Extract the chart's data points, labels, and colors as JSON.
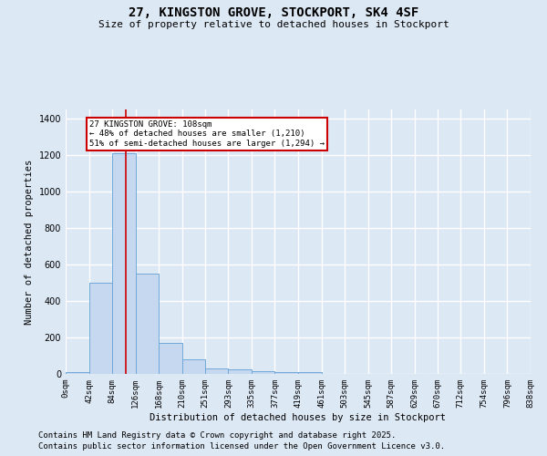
{
  "title1": "27, KINGSTON GROVE, STOCKPORT, SK4 4SF",
  "title2": "Size of property relative to detached houses in Stockport",
  "xlabel": "Distribution of detached houses by size in Stockport",
  "ylabel": "Number of detached properties",
  "bin_edges": [
    0,
    42,
    84,
    126,
    168,
    210,
    251,
    293,
    335,
    377,
    419,
    461,
    503,
    545,
    587,
    629,
    670,
    712,
    754,
    796,
    838
  ],
  "bar_heights": [
    10,
    500,
    1210,
    550,
    170,
    80,
    30,
    25,
    15,
    10,
    10,
    0,
    0,
    0,
    0,
    0,
    0,
    0,
    0,
    0
  ],
  "bar_color": "#c5d8f0",
  "bar_edge_color": "#6fa8d8",
  "background_color": "#dde8f5",
  "grid_color": "#ffffff",
  "property_size": 108,
  "red_line_color": "#cc0000",
  "annotation_text": "27 KINGSTON GROVE: 108sqm\n← 48% of detached houses are smaller (1,210)\n51% of semi-detached houses are larger (1,294) →",
  "annotation_box_color": "#ffffff",
  "annotation_edge_color": "#cc0000",
  "ylim": [
    0,
    1450
  ],
  "yticks": [
    0,
    200,
    400,
    600,
    800,
    1000,
    1200,
    1400
  ],
  "footnote1": "Contains HM Land Registry data © Crown copyright and database right 2025.",
  "footnote2": "Contains public sector information licensed under the Open Government Licence v3.0.",
  "tick_labels": [
    "0sqm",
    "42sqm",
    "84sqm",
    "126sqm",
    "168sqm",
    "210sqm",
    "251sqm",
    "293sqm",
    "335sqm",
    "377sqm",
    "419sqm",
    "461sqm",
    "503sqm",
    "545sqm",
    "587sqm",
    "629sqm",
    "670sqm",
    "712sqm",
    "754sqm",
    "796sqm",
    "838sqm"
  ]
}
